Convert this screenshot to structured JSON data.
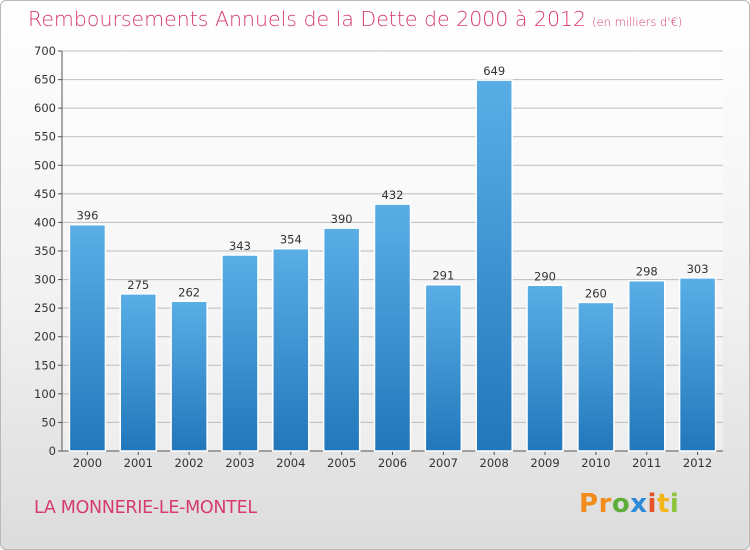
{
  "title": "Remboursements Annuels de la Dette de 2000 à 2012",
  "subtitle": "(en milliers d'€)",
  "commune": "LA MONNERIE-LE-MONTEL",
  "logo": "Proxiti",
  "colors": {
    "accent": "#d63a6f",
    "bar_top": "#5aaee6",
    "bar_bottom": "#2277bb"
  },
  "chart_data": {
    "type": "bar",
    "categories": [
      "2000",
      "2001",
      "2002",
      "2003",
      "2004",
      "2005",
      "2006",
      "2007",
      "2008",
      "2009",
      "2010",
      "2011",
      "2012"
    ],
    "values": [
      396,
      275,
      262,
      343,
      354,
      390,
      432,
      291,
      649,
      290,
      260,
      298,
      303
    ],
    "ylim": [
      0,
      700
    ],
    "yticks": [
      0,
      50,
      100,
      150,
      200,
      250,
      300,
      350,
      400,
      450,
      500,
      550,
      600,
      650,
      700
    ],
    "grid": true,
    "data_labels": true
  }
}
